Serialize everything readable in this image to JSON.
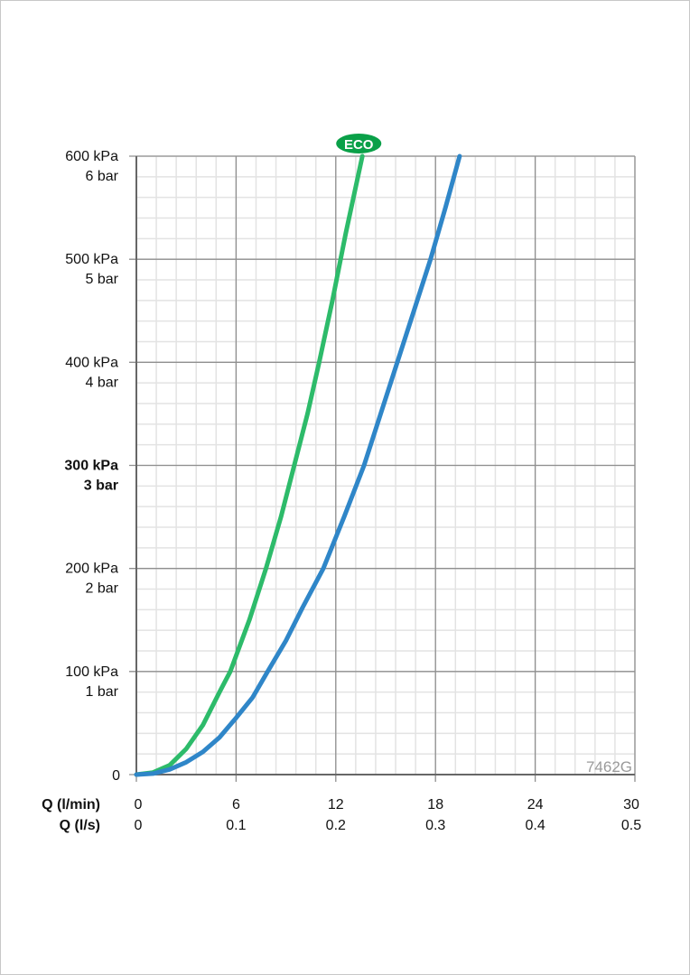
{
  "chart_data": {
    "type": "line",
    "xlabel": "Q (l/min)",
    "xlabel2": "Q (l/s)",
    "xlim": [
      0,
      30
    ],
    "ylim": [
      0,
      600
    ],
    "grid": true,
    "x_ticks": [
      "0",
      "6",
      "12",
      "18",
      "24",
      "30"
    ],
    "x_ticks2": [
      "0",
      "0.1",
      "0.2",
      "0.3",
      "0.4",
      "0.5"
    ],
    "y_ticks": [
      {
        "kpa": "0",
        "bar": ""
      },
      {
        "kpa": "100 kPa",
        "bar": "1 bar"
      },
      {
        "kpa": "200 kPa",
        "bar": "2 bar"
      },
      {
        "kpa": "300 kPa",
        "bar": "3 bar",
        "bold": true
      },
      {
        "kpa": "400 kPa",
        "bar": "4 bar"
      },
      {
        "kpa": "500 kPa",
        "bar": "5 bar"
      },
      {
        "kpa": "600 kPa",
        "bar": "6 bar"
      }
    ],
    "series": [
      {
        "color": "#2dbb6a",
        "label_badge": "ECO",
        "x": [
          0,
          1,
          2,
          3,
          4,
          5,
          5.65,
          6.8,
          7.8,
          8.7,
          9.5,
          10.3,
          11,
          11.8,
          12.6,
          13.6
        ],
        "y": [
          0,
          2,
          9,
          25,
          48,
          80,
          100,
          150,
          200,
          250,
          300,
          350,
          400,
          460,
          525,
          600
        ]
      },
      {
        "color": "#2f86c8",
        "x": [
          0,
          1,
          2,
          3,
          4,
          5,
          6,
          7,
          7.9,
          9,
          10,
          11.25,
          12.5,
          13.7,
          14.7,
          15.7,
          16.7,
          17.7,
          18.6,
          19.45
        ],
        "y": [
          0,
          1,
          5,
          12,
          22,
          36,
          55,
          75,
          100,
          130,
          162,
          200,
          250,
          300,
          350,
          400,
          450,
          500,
          550,
          600
        ]
      }
    ],
    "annotations": [
      "7462G"
    ]
  },
  "badge_color": "#0aa048"
}
